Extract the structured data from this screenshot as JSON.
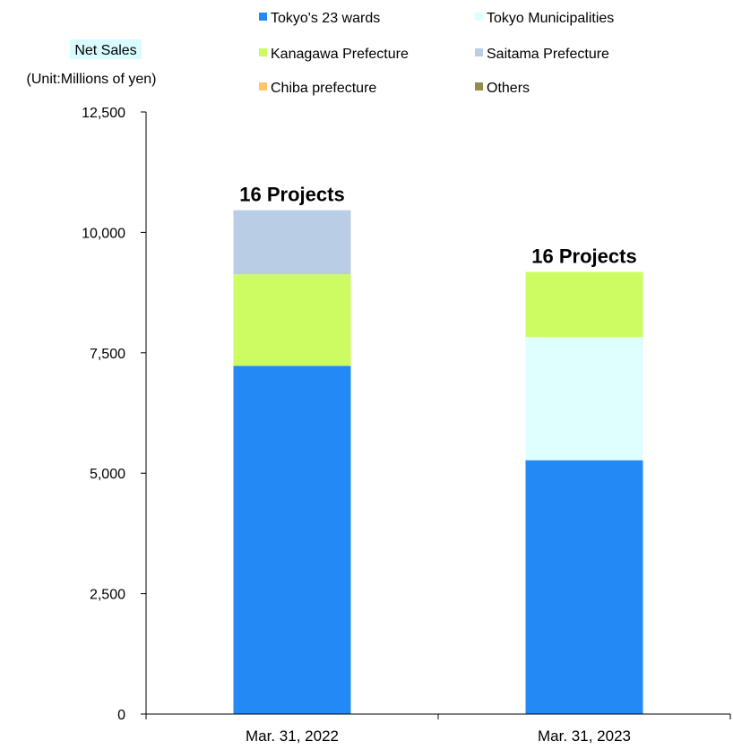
{
  "chart_data": {
    "type": "bar",
    "stacked": true,
    "categories": [
      "Mar. 31, 2022",
      "Mar. 31, 2023"
    ],
    "series": [
      {
        "name": "Tokyo's 23 wards",
        "color": "#2389f4",
        "values": [
          7230,
          5270
        ]
      },
      {
        "name": "Tokyo Municipalities",
        "color": "#dffefe",
        "values": [
          0,
          2560
        ]
      },
      {
        "name": "Kanagawa Prefecture",
        "color": "#cdfc62",
        "values": [
          1900,
          1350
        ]
      },
      {
        "name": "Saitama Prefecture",
        "color": "#b9cde4",
        "values": [
          1330,
          0
        ]
      },
      {
        "name": "Chiba prefecture",
        "color": "#fbc76a",
        "values": [
          0,
          0
        ]
      },
      {
        "name": "Others",
        "color": "#938c4e",
        "values": [
          0,
          0
        ]
      }
    ],
    "bar_labels": [
      "16 Projects",
      "16 Projects"
    ],
    "ylabel": "Net Sales",
    "ylabel_unit": "(Unit:Millions of yen)",
    "ylabel_highlight": "#d9fbfd",
    "ylim": [
      0,
      12500
    ],
    "yticks": [
      0,
      2500,
      5000,
      7500,
      10000,
      12500
    ],
    "ytick_labels": [
      "0",
      "2,500",
      "5,000",
      "7,500",
      "10,000",
      "12,500"
    ],
    "grid": false,
    "legend_position": "top"
  }
}
